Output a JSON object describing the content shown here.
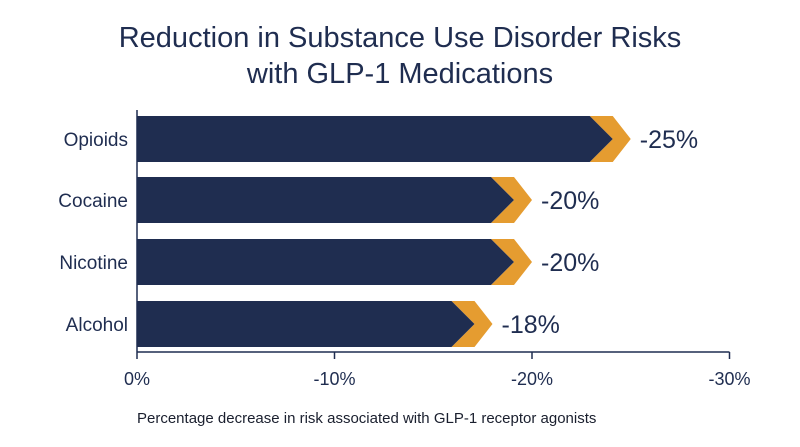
{
  "chart_data": {
    "type": "bar",
    "orientation": "horizontal",
    "title_lines": [
      "Reduction in Substance Use Disorder Risks",
      "with GLP-1 Medications"
    ],
    "categories": [
      "Opioids",
      "Cocaine",
      "Nicotine",
      "Alcohol"
    ],
    "values": [
      -25,
      -20,
      -20,
      -18
    ],
    "data_labels": [
      "-25%",
      "-20%",
      "-20%",
      "-18%"
    ],
    "x_ticks": [
      {
        "value": 0,
        "label": "0%"
      },
      {
        "value": -10,
        "label": "-10%"
      },
      {
        "value": -20,
        "label": "-20%"
      },
      {
        "value": -30,
        "label": "-30%"
      }
    ],
    "xlim": [
      0,
      -30
    ],
    "xlabel": "",
    "ylabel": "",
    "grid": false,
    "caption": "Percentage decrease in risk associated with GLP-1 receptor agonists",
    "colors": {
      "bar": "#1f2d50",
      "arrow_tip": "#e59c30",
      "text": "#1f2d50",
      "axis": "#1f2d50"
    }
  }
}
